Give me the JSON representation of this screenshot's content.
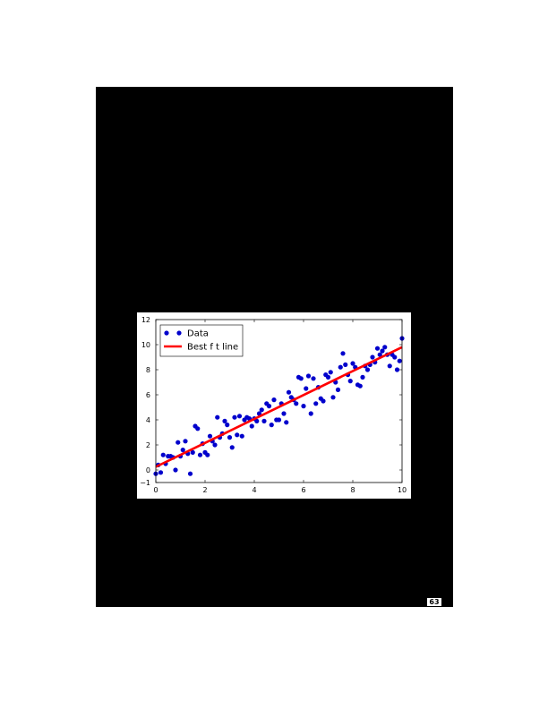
{
  "page": {
    "page_number": "63",
    "page_color": "#000000",
    "background_color": "#ffffff"
  },
  "chart_data": {
    "type": "scatter",
    "title": "",
    "xlabel": "",
    "ylabel": "",
    "xlim": [
      0,
      10
    ],
    "ylim": [
      -1,
      12
    ],
    "x_ticks": [
      "0",
      "2",
      "4",
      "6",
      "8",
      "10"
    ],
    "y_ticks": [
      "−1",
      "0",
      "2",
      "4",
      "6",
      "8",
      "10",
      "12"
    ],
    "y_tick_values": [
      -1,
      0,
      2,
      4,
      6,
      8,
      10,
      12
    ],
    "x_tick_values": [
      0,
      2,
      4,
      6,
      8,
      10
    ],
    "grid": false,
    "legend_position": "top-left",
    "series": [
      {
        "name": "Data",
        "kind": "scatter",
        "color": "#0000cc",
        "points": [
          [
            0.0,
            -0.3
          ],
          [
            0.1,
            0.4
          ],
          [
            0.2,
            -0.2
          ],
          [
            0.3,
            1.2
          ],
          [
            0.4,
            0.5
          ],
          [
            0.5,
            1.1
          ],
          [
            0.6,
            1.1
          ],
          [
            0.7,
            1.0
          ],
          [
            0.8,
            0.0
          ],
          [
            0.9,
            2.2
          ],
          [
            1.0,
            1.1
          ],
          [
            1.1,
            1.6
          ],
          [
            1.2,
            2.3
          ],
          [
            1.3,
            1.3
          ],
          [
            1.4,
            -0.3
          ],
          [
            1.5,
            1.4
          ],
          [
            1.6,
            3.5
          ],
          [
            1.7,
            3.3
          ],
          [
            1.8,
            1.2
          ],
          [
            1.9,
            2.1
          ],
          [
            2.0,
            1.4
          ],
          [
            2.1,
            1.2
          ],
          [
            2.2,
            2.7
          ],
          [
            2.3,
            2.3
          ],
          [
            2.4,
            2.0
          ],
          [
            2.5,
            4.2
          ],
          [
            2.6,
            2.6
          ],
          [
            2.7,
            2.9
          ],
          [
            2.8,
            3.9
          ],
          [
            2.9,
            3.6
          ],
          [
            3.0,
            2.6
          ],
          [
            3.1,
            1.8
          ],
          [
            3.2,
            4.2
          ],
          [
            3.3,
            2.8
          ],
          [
            3.4,
            4.3
          ],
          [
            3.5,
            2.7
          ],
          [
            3.6,
            4.0
          ],
          [
            3.7,
            4.2
          ],
          [
            3.8,
            4.1
          ],
          [
            3.9,
            3.5
          ],
          [
            4.0,
            4.1
          ],
          [
            4.1,
            3.9
          ],
          [
            4.2,
            4.5
          ],
          [
            4.3,
            4.8
          ],
          [
            4.4,
            3.9
          ],
          [
            4.5,
            5.3
          ],
          [
            4.6,
            5.1
          ],
          [
            4.7,
            3.6
          ],
          [
            4.8,
            5.6
          ],
          [
            4.9,
            4.0
          ],
          [
            5.0,
            4.0
          ],
          [
            5.1,
            5.3
          ],
          [
            5.2,
            4.5
          ],
          [
            5.3,
            3.8
          ],
          [
            5.4,
            6.2
          ],
          [
            5.5,
            5.8
          ],
          [
            5.6,
            5.6
          ],
          [
            5.7,
            5.3
          ],
          [
            5.8,
            7.4
          ],
          [
            5.9,
            7.3
          ],
          [
            6.0,
            5.1
          ],
          [
            6.1,
            6.5
          ],
          [
            6.2,
            7.5
          ],
          [
            6.3,
            4.5
          ],
          [
            6.4,
            7.3
          ],
          [
            6.5,
            5.3
          ],
          [
            6.6,
            6.6
          ],
          [
            6.7,
            5.7
          ],
          [
            6.8,
            5.5
          ],
          [
            6.9,
            7.6
          ],
          [
            7.0,
            7.4
          ],
          [
            7.1,
            7.8
          ],
          [
            7.2,
            5.8
          ],
          [
            7.3,
            7.0
          ],
          [
            7.4,
            6.4
          ],
          [
            7.5,
            8.2
          ],
          [
            7.6,
            9.3
          ],
          [
            7.7,
            8.4
          ],
          [
            7.8,
            7.6
          ],
          [
            7.9,
            7.1
          ],
          [
            8.0,
            8.5
          ],
          [
            8.1,
            8.2
          ],
          [
            8.2,
            6.8
          ],
          [
            8.3,
            6.7
          ],
          [
            8.4,
            7.4
          ],
          [
            8.5,
            8.3
          ],
          [
            8.6,
            8.0
          ],
          [
            8.7,
            8.4
          ],
          [
            8.8,
            9.0
          ],
          [
            8.9,
            8.6
          ],
          [
            9.0,
            9.7
          ],
          [
            9.1,
            9.2
          ],
          [
            9.2,
            9.5
          ],
          [
            9.3,
            9.8
          ],
          [
            9.4,
            9.2
          ],
          [
            9.5,
            8.3
          ],
          [
            9.6,
            9.2
          ],
          [
            9.7,
            9.0
          ],
          [
            9.8,
            8.0
          ],
          [
            9.9,
            8.7
          ],
          [
            10.0,
            10.5
          ]
        ]
      },
      {
        "name": "Best fit line",
        "kind": "line",
        "color": "#ff0000",
        "x": [
          0,
          10
        ],
        "y": [
          0.25,
          9.8
        ]
      }
    ],
    "legend": [
      {
        "label": "Data",
        "series": 0
      },
      {
        "label": "Best f t line",
        "series": 1
      }
    ]
  }
}
